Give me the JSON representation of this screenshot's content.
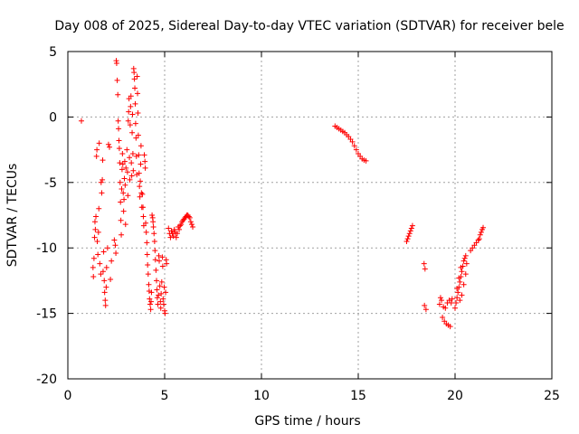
{
  "chart_data": {
    "type": "scatter",
    "title": "Day 008 of 2025, Sidereal Day-to-day VTEC variation (SDTVAR) for receiver bele",
    "xlabel": "GPS time / hours",
    "ylabel": "SDTVAR / TECUs",
    "xlim": [
      0,
      25
    ],
    "ylim": [
      -20,
      5
    ],
    "xticks": [
      0,
      5,
      10,
      15,
      20,
      25
    ],
    "yticks": [
      -20,
      -15,
      -10,
      -5,
      0,
      5
    ],
    "grid": true,
    "marker": "+",
    "color": "#ff0000",
    "series": [
      {
        "name": "SDTVAR",
        "points": [
          [
            0.7,
            -0.3
          ],
          [
            1.3,
            -11.5
          ],
          [
            1.32,
            -12.2
          ],
          [
            1.35,
            -10.8
          ],
          [
            1.38,
            -9.2
          ],
          [
            1.4,
            -8.0
          ],
          [
            1.42,
            -8.6
          ],
          [
            1.45,
            -7.6
          ],
          [
            1.48,
            -3.0
          ],
          [
            1.5,
            -2.5
          ],
          [
            1.52,
            -9.5
          ],
          [
            1.55,
            -10.5
          ],
          [
            1.58,
            -8.8
          ],
          [
            1.6,
            -7.0
          ],
          [
            1.62,
            -2.0
          ],
          [
            1.65,
            -11.2
          ],
          [
            1.7,
            -12.0
          ],
          [
            1.72,
            -5.0
          ],
          [
            1.75,
            -5.8
          ],
          [
            1.78,
            -4.8
          ],
          [
            1.8,
            -3.3
          ],
          [
            1.82,
            -11.8
          ],
          [
            1.85,
            -10.3
          ],
          [
            1.88,
            -12.5
          ],
          [
            1.9,
            -13.4
          ],
          [
            1.93,
            -14.0
          ],
          [
            1.95,
            -14.4
          ],
          [
            1.98,
            -13.0
          ],
          [
            2.0,
            -11.5
          ],
          [
            2.05,
            -10.0
          ],
          [
            2.1,
            -2.1
          ],
          [
            2.15,
            -2.3
          ],
          [
            2.2,
            -12.4
          ],
          [
            2.25,
            -11.0
          ],
          [
            2.4,
            -9.4
          ],
          [
            2.45,
            -9.8
          ],
          [
            2.48,
            -10.4
          ],
          [
            2.5,
            4.3
          ],
          [
            2.52,
            4.1
          ],
          [
            2.55,
            2.8
          ],
          [
            2.58,
            1.7
          ],
          [
            2.6,
            -0.3
          ],
          [
            2.62,
            -0.9
          ],
          [
            2.64,
            -1.8
          ],
          [
            2.66,
            -2.4
          ],
          [
            2.68,
            -3.5
          ],
          [
            2.7,
            -5.0
          ],
          [
            2.72,
            -6.5
          ],
          [
            2.74,
            -7.9
          ],
          [
            2.76,
            -9.0
          ],
          [
            2.78,
            -5.5
          ],
          [
            2.8,
            -4.0
          ],
          [
            2.82,
            -2.8
          ],
          [
            2.84,
            -3.6
          ],
          [
            2.86,
            -5.8
          ],
          [
            2.88,
            -7.2
          ],
          [
            2.9,
            -6.3
          ],
          [
            2.92,
            -4.7
          ],
          [
            2.94,
            -3.4
          ],
          [
            2.96,
            -5.2
          ],
          [
            2.98,
            -8.2
          ],
          [
            3.0,
            -3.9
          ],
          [
            3.05,
            -2.5
          ],
          [
            3.08,
            -4.2
          ],
          [
            3.1,
            -6.0
          ],
          [
            3.12,
            -0.3
          ],
          [
            3.14,
            0.4
          ],
          [
            3.16,
            1.4
          ],
          [
            3.18,
            -3.1
          ],
          [
            3.2,
            -4.8
          ],
          [
            3.22,
            -0.6
          ],
          [
            3.24,
            0.8
          ],
          [
            3.26,
            1.6
          ],
          [
            3.28,
            -3.5
          ],
          [
            3.3,
            -4.5
          ],
          [
            3.32,
            -1.2
          ],
          [
            3.34,
            0.2
          ],
          [
            3.36,
            -2.8
          ],
          [
            3.38,
            -4.1
          ],
          [
            3.4,
            3.7
          ],
          [
            3.42,
            3.4
          ],
          [
            3.44,
            2.9
          ],
          [
            3.46,
            2.2
          ],
          [
            3.48,
            1.0
          ],
          [
            3.5,
            -0.5
          ],
          [
            3.52,
            -1.6
          ],
          [
            3.54,
            -3.0
          ],
          [
            3.56,
            -4.4
          ],
          [
            3.58,
            3.1
          ],
          [
            3.6,
            1.8
          ],
          [
            3.62,
            0.3
          ],
          [
            3.64,
            -1.4
          ],
          [
            3.66,
            -2.9
          ],
          [
            3.68,
            -4.3
          ],
          [
            3.7,
            -5.3
          ],
          [
            3.72,
            -6.1
          ],
          [
            3.74,
            -4.9
          ],
          [
            3.76,
            -3.6
          ],
          [
            3.78,
            -2.2
          ],
          [
            3.8,
            -5.8
          ],
          [
            3.82,
            -6.9
          ],
          [
            3.85,
            -5.9
          ],
          [
            3.88,
            -6.9
          ],
          [
            3.9,
            -7.6
          ],
          [
            3.92,
            -8.3
          ],
          [
            3.95,
            -2.9
          ],
          [
            3.98,
            -3.4
          ],
          [
            4.0,
            -3.9
          ],
          [
            4.02,
            -8.1
          ],
          [
            4.05,
            -8.8
          ],
          [
            4.08,
            -9.6
          ],
          [
            4.1,
            -10.5
          ],
          [
            4.12,
            -11.3
          ],
          [
            4.15,
            -12.0
          ],
          [
            4.18,
            -12.8
          ],
          [
            4.2,
            -13.3
          ],
          [
            4.22,
            -13.9
          ],
          [
            4.25,
            -14.3
          ],
          [
            4.28,
            -14.7
          ],
          [
            4.3,
            -14.1
          ],
          [
            4.32,
            -13.4
          ],
          [
            4.35,
            -7.5
          ],
          [
            4.38,
            -7.7
          ],
          [
            4.4,
            -8.0
          ],
          [
            4.42,
            -8.4
          ],
          [
            4.45,
            -8.9
          ],
          [
            4.48,
            -9.5
          ],
          [
            4.5,
            -10.2
          ],
          [
            4.52,
            -10.9
          ],
          [
            4.55,
            -11.7
          ],
          [
            4.58,
            -12.5
          ],
          [
            4.6,
            -13.2
          ],
          [
            4.62,
            -13.8
          ],
          [
            4.65,
            -14.3
          ],
          [
            4.68,
            -13.6
          ],
          [
            4.7,
            -10.6
          ],
          [
            4.72,
            -11.0
          ],
          [
            4.75,
            -12.9
          ],
          [
            4.78,
            -14.1
          ],
          [
            4.8,
            -14.6
          ],
          [
            4.82,
            -13.5
          ],
          [
            4.85,
            -12.6
          ],
          [
            4.88,
            -10.7
          ],
          [
            4.9,
            -11.4
          ],
          [
            4.92,
            -13.9
          ],
          [
            4.95,
            -14.3
          ],
          [
            4.98,
            -13.0
          ],
          [
            5.0,
            -14.8
          ],
          [
            5.02,
            -15.0
          ],
          [
            5.05,
            -13.4
          ],
          [
            5.08,
            -10.9
          ],
          [
            5.1,
            -11.2
          ],
          [
            5.2,
            -8.5
          ],
          [
            5.25,
            -8.9
          ],
          [
            5.3,
            -9.2
          ],
          [
            5.35,
            -8.7
          ],
          [
            5.4,
            -8.9
          ],
          [
            5.45,
            -9.1
          ],
          [
            5.5,
            -8.6
          ],
          [
            5.55,
            -8.8
          ],
          [
            5.6,
            -9.2
          ],
          [
            5.65,
            -8.9
          ],
          [
            5.7,
            -8.4
          ],
          [
            5.75,
            -8.6
          ],
          [
            5.8,
            -8.3
          ],
          [
            5.85,
            -8.2
          ],
          [
            5.9,
            -8.0
          ],
          [
            5.95,
            -7.9
          ],
          [
            6.0,
            -7.8
          ],
          [
            6.05,
            -7.7
          ],
          [
            6.1,
            -7.6
          ],
          [
            6.15,
            -7.5
          ],
          [
            6.2,
            -7.5
          ],
          [
            6.25,
            -7.6
          ],
          [
            6.3,
            -7.7
          ],
          [
            6.35,
            -8.0
          ],
          [
            6.4,
            -8.2
          ],
          [
            6.45,
            -8.4
          ],
          [
            13.8,
            -0.7
          ],
          [
            13.9,
            -0.8
          ],
          [
            14.0,
            -0.9
          ],
          [
            14.1,
            -1.0
          ],
          [
            14.2,
            -1.1
          ],
          [
            14.3,
            -1.2
          ],
          [
            14.4,
            -1.35
          ],
          [
            14.5,
            -1.5
          ],
          [
            14.6,
            -1.7
          ],
          [
            14.7,
            -1.9
          ],
          [
            14.8,
            -2.2
          ],
          [
            14.9,
            -2.5
          ],
          [
            15.0,
            -2.8
          ],
          [
            15.1,
            -3.0
          ],
          [
            15.2,
            -3.2
          ],
          [
            15.3,
            -3.3
          ],
          [
            15.4,
            -3.35
          ],
          [
            17.5,
            -9.5
          ],
          [
            17.55,
            -9.3
          ],
          [
            17.6,
            -9.1
          ],
          [
            17.65,
            -8.9
          ],
          [
            17.7,
            -8.7
          ],
          [
            17.75,
            -8.5
          ],
          [
            17.8,
            -8.3
          ],
          [
            18.4,
            -11.2
          ],
          [
            18.45,
            -11.6
          ],
          [
            18.42,
            -14.4
          ],
          [
            18.5,
            -14.7
          ],
          [
            19.2,
            -14.3
          ],
          [
            19.25,
            -13.8
          ],
          [
            19.3,
            -14.0
          ],
          [
            19.35,
            -15.3
          ],
          [
            19.4,
            -14.5
          ],
          [
            19.45,
            -15.6
          ],
          [
            19.5,
            -14.6
          ],
          [
            19.55,
            -15.8
          ],
          [
            19.6,
            -14.2
          ],
          [
            19.65,
            -15.9
          ],
          [
            19.7,
            -14.0
          ],
          [
            19.75,
            -16.0
          ],
          [
            19.8,
            -14.2
          ],
          [
            19.85,
            -13.9
          ],
          [
            20.0,
            -14.6
          ],
          [
            20.05,
            -14.2
          ],
          [
            20.1,
            -13.8
          ],
          [
            20.15,
            -13.4
          ],
          [
            20.2,
            -13.0
          ],
          [
            20.25,
            -12.6
          ],
          [
            20.3,
            -12.2
          ],
          [
            20.35,
            -11.8
          ],
          [
            20.4,
            -11.4
          ],
          [
            20.45,
            -11.0
          ],
          [
            20.5,
            -10.8
          ],
          [
            20.55,
            -10.6
          ],
          [
            20.1,
            -13.1
          ],
          [
            20.2,
            -12.3
          ],
          [
            20.3,
            -11.5
          ],
          [
            20.25,
            -14.0
          ],
          [
            20.35,
            -13.6
          ],
          [
            20.45,
            -12.8
          ],
          [
            20.55,
            -12.0
          ],
          [
            20.6,
            -11.2
          ],
          [
            20.8,
            -10.2
          ],
          [
            20.9,
            -10.0
          ],
          [
            21.0,
            -9.8
          ],
          [
            21.1,
            -9.6
          ],
          [
            21.2,
            -9.4
          ],
          [
            21.25,
            -9.3
          ],
          [
            21.3,
            -9.0
          ],
          [
            21.35,
            -8.8
          ],
          [
            21.4,
            -8.6
          ],
          [
            21.45,
            -8.45
          ]
        ]
      }
    ]
  }
}
